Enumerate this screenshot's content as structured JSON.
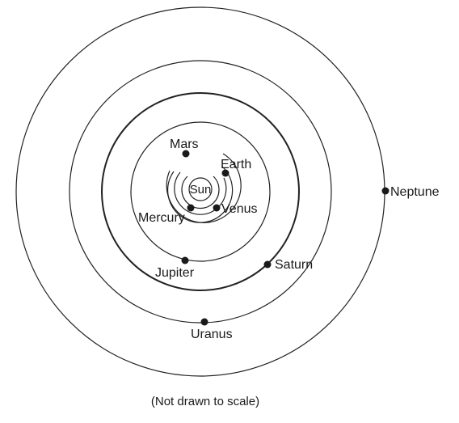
{
  "diagram": {
    "sun_label": "Sun",
    "planets": [
      {
        "key": "mercury",
        "label": "Mercury"
      },
      {
        "key": "venus",
        "label": "Venus"
      },
      {
        "key": "earth",
        "label": "Earth"
      },
      {
        "key": "mars",
        "label": "Mars"
      },
      {
        "key": "jupiter",
        "label": "Jupiter"
      },
      {
        "key": "saturn",
        "label": "Saturn"
      },
      {
        "key": "uranus",
        "label": "Uranus"
      },
      {
        "key": "neptune",
        "label": "Neptune"
      }
    ],
    "caption": "(Not drawn to scale)"
  }
}
